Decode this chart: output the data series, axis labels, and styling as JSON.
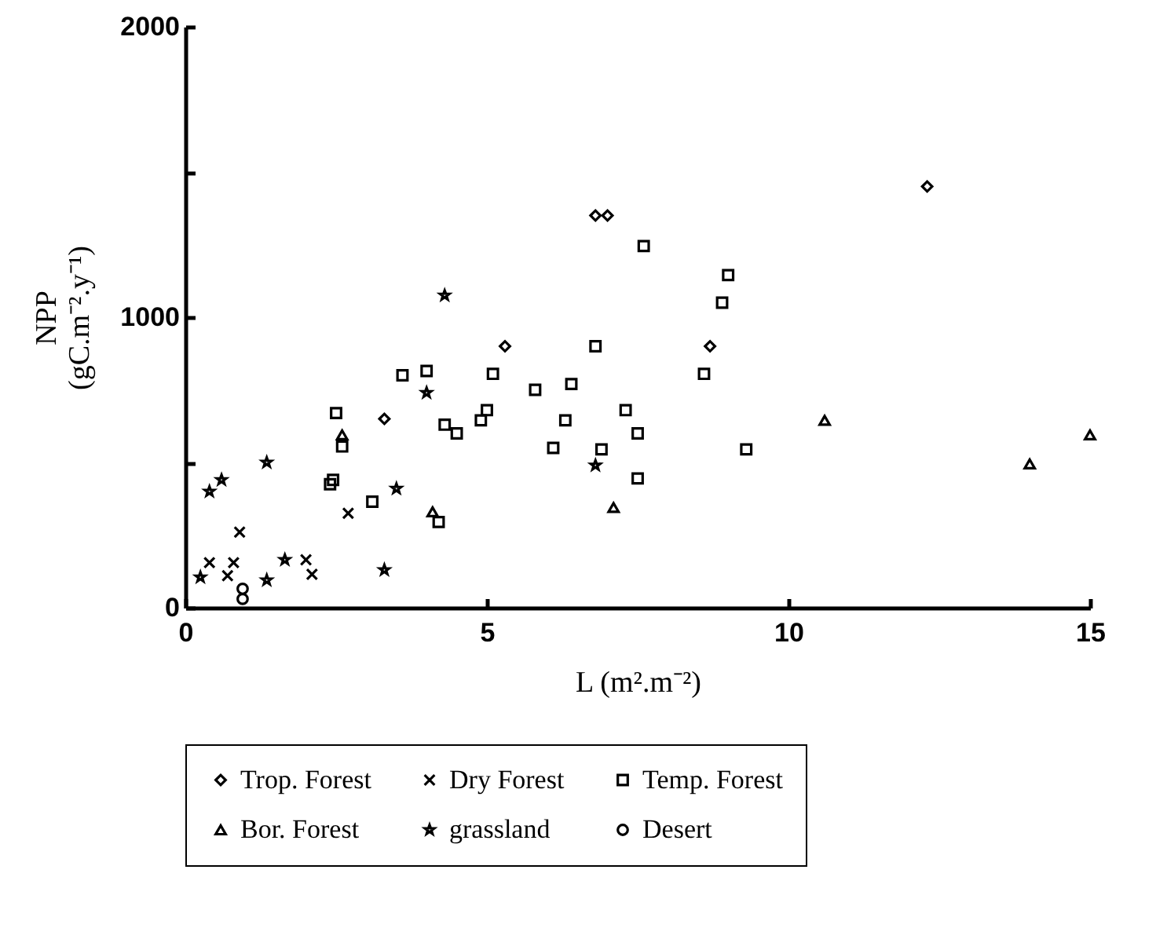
{
  "chart_data": {
    "type": "scatter",
    "xlabel": "L (m².m⁻²)",
    "ylabel": "NPP (gC.m⁻².y⁻¹)",
    "xlim": [
      0,
      15
    ],
    "xticks": [
      0,
      5,
      10,
      15
    ],
    "ylim": [
      0,
      2000
    ],
    "yticks": [
      0,
      {
        "value": 500,
        "label": null
      },
      1000,
      {
        "value": 1500,
        "label": null
      },
      2000
    ],
    "grid": false,
    "legend": "bottom",
    "series": [
      {
        "name": "Trop. Forest",
        "color": "#000000",
        "marker": "diamond",
        "x": [
          3.3,
          5.3,
          6.8,
          7.0,
          8.7,
          12.3
        ],
        "values": [
          650,
          900,
          1350,
          1350,
          900,
          1450
        ]
      },
      {
        "name": "Dry Forest",
        "color": "#000000",
        "marker": "cross",
        "x": [
          0.4,
          0.7,
          0.8,
          0.9,
          2.0,
          2.1,
          2.7
        ],
        "values": [
          155,
          110,
          155,
          260,
          165,
          115,
          325
        ]
      },
      {
        "name": "Temp. Forest",
        "color": "#000000",
        "marker": "square",
        "x": [
          2.4,
          2.45,
          2.5,
          2.6,
          3.1,
          3.6,
          4.0,
          4.2,
          4.3,
          4.5,
          4.9,
          5.0,
          5.1,
          5.8,
          6.1,
          6.3,
          6.4,
          6.8,
          6.9,
          7.3,
          7.5,
          7.5,
          7.6,
          8.6,
          8.9,
          9.0,
          9.3
        ],
        "values": [
          425,
          440,
          670,
          555,
          365,
          800,
          815,
          295,
          630,
          600,
          645,
          680,
          805,
          750,
          550,
          645,
          770,
          900,
          545,
          680,
          600,
          445,
          1245,
          805,
          1050,
          1145,
          545
        ]
      },
      {
        "name": "Bor. Forest",
        "color": "#000000",
        "marker": "triangle",
        "x": [
          2.6,
          4.1,
          7.1,
          10.6,
          14.0,
          15.0
        ],
        "values": [
          595,
          330,
          345,
          645,
          495,
          595
        ]
      },
      {
        "name": "grassland",
        "color": "#000000",
        "marker": "star",
        "x": [
          0.25,
          0.4,
          0.6,
          1.35,
          1.35,
          1.65,
          3.3,
          3.5,
          4.0,
          4.3,
          6.8
        ],
        "values": [
          105,
          400,
          440,
          500,
          95,
          165,
          130,
          410,
          740,
          1075,
          490
        ]
      },
      {
        "name": "Desert",
        "color": "#000000",
        "marker": "circle",
        "x": [
          0.95,
          0.95
        ],
        "values": [
          65,
          30
        ]
      }
    ]
  }
}
